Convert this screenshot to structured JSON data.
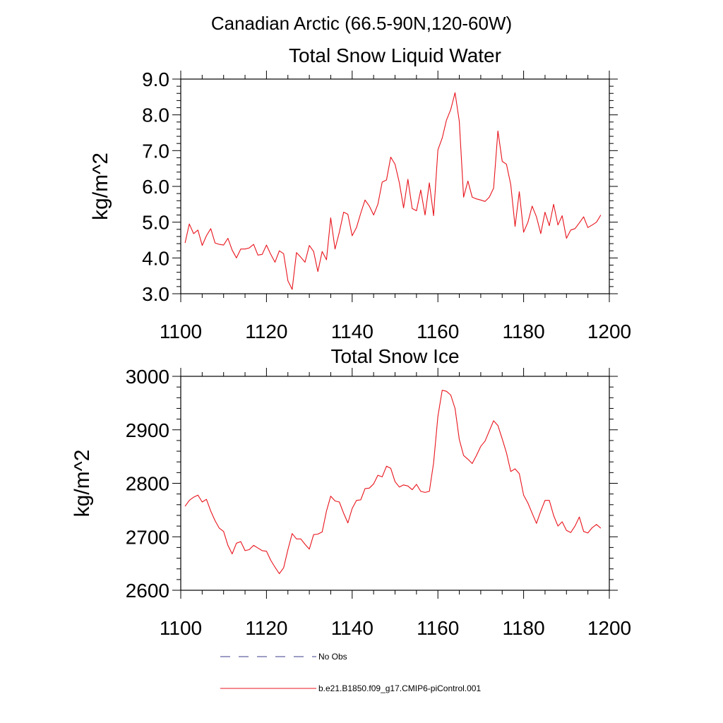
{
  "figure_title": "Canadian Arctic (66.5-90N,120-60W)",
  "legend": {
    "entries": [
      {
        "label": "No Obs",
        "color": "#3a3a8c",
        "dash": true
      },
      {
        "label": "b.e21.B1850.f09_g17.CMIP6-piControl.001",
        "color": "#e8141c",
        "dash": false
      }
    ]
  },
  "chart_data": [
    {
      "type": "line",
      "title": "Total Snow Liquid Water",
      "xlabel": "",
      "ylabel": "kg/m^2",
      "xlim": [
        1100,
        1200
      ],
      "ylim": [
        3.0,
        9.0
      ],
      "xticks": [
        "1100",
        "1120",
        "1140",
        "1160",
        "1180",
        "1200"
      ],
      "yticks": [
        "3.0",
        "4.0",
        "5.0",
        "6.0",
        "7.0",
        "8.0",
        "9.0"
      ],
      "grid": false,
      "series": [
        {
          "name": "b.e21.B1850.f09_g17.CMIP6-piControl.001",
          "color": "#e8141c",
          "x": [
            1101,
            1102,
            1103,
            1104,
            1105,
            1106,
            1107,
            1108,
            1109,
            1110,
            1111,
            1112,
            1113,
            1114,
            1115,
            1116,
            1117,
            1118,
            1119,
            1120,
            1121,
            1122,
            1123,
            1124,
            1125,
            1126,
            1127,
            1128,
            1129,
            1130,
            1131,
            1132,
            1133,
            1134,
            1135,
            1136,
            1137,
            1138,
            1139,
            1140,
            1141,
            1142,
            1143,
            1144,
            1145,
            1146,
            1147,
            1148,
            1149,
            1150,
            1151,
            1152,
            1153,
            1154,
            1155,
            1156,
            1157,
            1158,
            1159,
            1160,
            1161,
            1162,
            1163,
            1164,
            1165,
            1166,
            1167,
            1168,
            1169,
            1170,
            1171,
            1172,
            1173,
            1174,
            1175,
            1176,
            1177,
            1178,
            1179,
            1180,
            1181,
            1182,
            1183,
            1184,
            1185,
            1186,
            1187,
            1188,
            1189,
            1190,
            1191,
            1192,
            1193,
            1194,
            1195,
            1196,
            1197,
            1198
          ],
          "y": [
            4.42,
            4.95,
            4.68,
            4.78,
            4.35,
            4.62,
            4.82,
            4.42,
            4.38,
            4.36,
            4.55,
            4.22,
            4.0,
            4.25,
            4.25,
            4.28,
            4.38,
            4.08,
            4.1,
            4.36,
            4.1,
            3.88,
            4.2,
            4.12,
            3.36,
            3.12,
            4.15,
            4.02,
            3.88,
            4.35,
            4.18,
            3.62,
            4.18,
            3.95,
            5.12,
            4.25,
            4.72,
            5.28,
            5.22,
            4.62,
            4.85,
            5.25,
            5.62,
            5.45,
            5.2,
            5.5,
            6.12,
            6.18,
            6.82,
            6.62,
            6.1,
            5.4,
            6.2,
            5.38,
            5.32,
            5.9,
            5.2,
            6.1,
            5.18,
            7.02,
            7.35,
            7.85,
            8.15,
            8.62,
            7.82,
            5.7,
            6.15,
            5.7,
            5.65,
            5.62,
            5.58,
            5.7,
            5.95,
            7.55,
            6.7,
            6.62,
            6.05,
            4.88,
            5.85,
            4.72,
            5.0,
            5.45,
            5.15,
            4.68,
            5.28,
            4.9,
            5.5,
            4.92,
            5.18,
            4.55,
            4.78,
            4.82,
            4.98,
            5.15,
            4.85,
            4.92,
            5.0,
            5.2
          ]
        }
      ]
    },
    {
      "type": "line",
      "title": "Total Snow Ice",
      "xlabel": "",
      "ylabel": "kg/m^2",
      "xlim": [
        1100,
        1200
      ],
      "ylim": [
        2600,
        3000
      ],
      "xticks": [
        "1100",
        "1120",
        "1140",
        "1160",
        "1180",
        "1200"
      ],
      "yticks": [
        "2600",
        "2700",
        "2800",
        "2900",
        "3000"
      ],
      "grid": false,
      "series": [
        {
          "name": "b.e21.B1850.f09_g17.CMIP6-piControl.001",
          "color": "#e8141c",
          "x": [
            1101,
            1102,
            1103,
            1104,
            1105,
            1106,
            1107,
            1108,
            1109,
            1110,
            1111,
            1112,
            1113,
            1114,
            1115,
            1116,
            1117,
            1118,
            1119,
            1120,
            1121,
            1122,
            1123,
            1124,
            1125,
            1126,
            1127,
            1128,
            1129,
            1130,
            1131,
            1132,
            1133,
            1134,
            1135,
            1136,
            1137,
            1138,
            1139,
            1140,
            1141,
            1142,
            1143,
            1144,
            1145,
            1146,
            1147,
            1148,
            1149,
            1150,
            1151,
            1152,
            1153,
            1154,
            1155,
            1156,
            1157,
            1158,
            1159,
            1160,
            1161,
            1162,
            1163,
            1164,
            1165,
            1166,
            1167,
            1168,
            1169,
            1170,
            1171,
            1172,
            1173,
            1174,
            1175,
            1176,
            1177,
            1178,
            1179,
            1180,
            1181,
            1182,
            1183,
            1184,
            1185,
            1186,
            1187,
            1188,
            1189,
            1190,
            1191,
            1192,
            1193,
            1194,
            1195,
            1196,
            1197,
            1198
          ],
          "y": [
            2757,
            2768,
            2774,
            2778,
            2765,
            2770,
            2748,
            2730,
            2716,
            2710,
            2684,
            2668,
            2688,
            2691,
            2674,
            2676,
            2684,
            2679,
            2674,
            2673,
            2656,
            2643,
            2631,
            2642,
            2676,
            2706,
            2696,
            2696,
            2686,
            2677,
            2704,
            2705,
            2709,
            2748,
            2776,
            2767,
            2765,
            2744,
            2726,
            2753,
            2768,
            2769,
            2790,
            2791,
            2799,
            2815,
            2812,
            2832,
            2828,
            2803,
            2793,
            2797,
            2795,
            2788,
            2798,
            2785,
            2783,
            2785,
            2838,
            2925,
            2974,
            2972,
            2965,
            2940,
            2882,
            2852,
            2845,
            2837,
            2852,
            2869,
            2879,
            2898,
            2917,
            2908,
            2883,
            2857,
            2822,
            2827,
            2818,
            2778,
            2763,
            2744,
            2725,
            2748,
            2768,
            2768,
            2740,
            2720,
            2728,
            2712,
            2708,
            2720,
            2737,
            2710,
            2707,
            2717,
            2723,
            2716
          ]
        }
      ]
    }
  ]
}
